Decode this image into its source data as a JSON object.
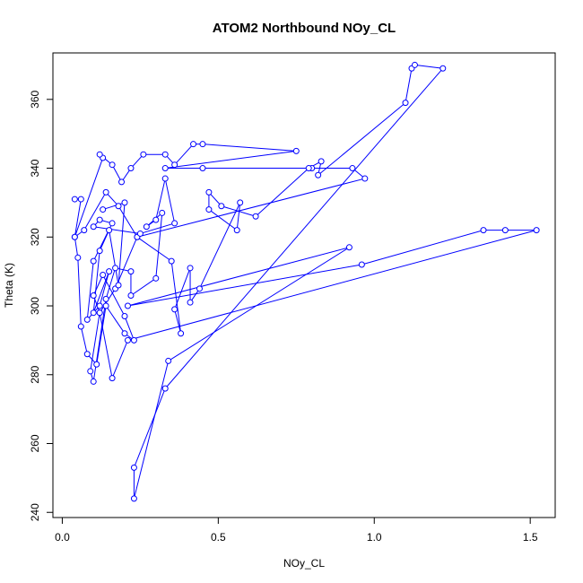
{
  "chart_data": {
    "type": "line",
    "title": "ATOM2 Northbound NOy_CL",
    "xlabel": "NOy_CL",
    "ylabel": "Theta (K)",
    "xlim": [
      -0.03,
      1.58
    ],
    "ylim": [
      238.5,
      373.5
    ],
    "xticks": [
      0.0,
      0.5,
      1.0,
      1.5
    ],
    "xtick_labels": [
      "0.0",
      "0.5",
      "1.0",
      "1.5"
    ],
    "yticks": [
      240,
      260,
      280,
      300,
      320,
      340,
      360
    ],
    "ytick_labels": [
      "240",
      "260",
      "280",
      "300",
      "320",
      "340",
      "360"
    ],
    "grid": false,
    "legend": "none",
    "series": [
      {
        "color": "#0000ff",
        "marker": "open-circle",
        "points": [
          [
            0.04,
            331
          ],
          [
            0.06,
            331
          ],
          [
            0.04,
            320
          ],
          [
            0.13,
            343
          ],
          [
            0.12,
            344
          ],
          [
            0.16,
            341
          ],
          [
            0.19,
            336
          ],
          [
            0.22,
            340
          ],
          [
            0.26,
            344
          ],
          [
            0.33,
            344
          ],
          [
            0.36,
            341
          ],
          [
            0.42,
            347
          ],
          [
            0.45,
            347
          ],
          [
            0.75,
            345
          ],
          [
            0.33,
            340
          ],
          [
            0.45,
            340
          ],
          [
            0.8,
            340
          ],
          [
            0.93,
            340
          ],
          [
            0.97,
            337
          ],
          [
            0.24,
            320
          ],
          [
            0.18,
            329
          ],
          [
            0.14,
            333
          ],
          [
            0.07,
            322
          ],
          [
            0.04,
            320
          ],
          [
            0.05,
            314
          ],
          [
            0.06,
            294
          ],
          [
            0.08,
            286
          ],
          [
            0.11,
            283
          ],
          [
            0.14,
            300
          ],
          [
            0.2,
            292
          ],
          [
            0.23,
            290
          ],
          [
            0.2,
            297
          ],
          [
            0.13,
            309
          ],
          [
            0.1,
            303
          ],
          [
            0.12,
            298
          ],
          [
            0.17,
            305
          ],
          [
            0.24,
            320
          ],
          [
            0.35,
            313
          ],
          [
            0.38,
            292
          ],
          [
            0.36,
            299
          ],
          [
            0.41,
            311
          ],
          [
            0.41,
            301
          ],
          [
            0.44,
            305
          ],
          [
            0.57,
            330
          ],
          [
            0.56,
            322
          ],
          [
            0.47,
            328
          ],
          [
            0.47,
            333
          ],
          [
            0.51,
            329
          ],
          [
            0.62,
            326
          ],
          [
            0.79,
            340
          ],
          [
            0.83,
            342
          ],
          [
            0.82,
            338
          ],
          [
            1.1,
            359
          ],
          [
            1.12,
            369
          ],
          [
            1.13,
            370
          ],
          [
            1.22,
            369
          ],
          [
            0.33,
            276
          ],
          [
            0.23,
            253
          ],
          [
            0.23,
            244
          ],
          [
            0.34,
            284
          ],
          [
            0.92,
            317
          ],
          [
            0.21,
            300
          ],
          [
            0.96,
            312
          ],
          [
            1.35,
            322
          ],
          [
            1.42,
            322
          ],
          [
            1.52,
            322
          ],
          [
            0.21,
            290
          ],
          [
            0.16,
            279
          ],
          [
            0.12,
            298
          ],
          [
            0.09,
            281
          ],
          [
            0.1,
            278
          ],
          [
            0.14,
            302
          ],
          [
            0.17,
            311
          ],
          [
            0.22,
            310
          ],
          [
            0.22,
            303
          ],
          [
            0.3,
            308
          ],
          [
            0.32,
            327
          ],
          [
            0.27,
            323
          ],
          [
            0.3,
            325
          ],
          [
            0.33,
            337
          ],
          [
            0.36,
            324
          ],
          [
            0.25,
            321
          ],
          [
            0.1,
            323
          ],
          [
            0.12,
            325
          ],
          [
            0.16,
            324
          ],
          [
            0.1,
            313
          ],
          [
            0.08,
            296
          ],
          [
            0.12,
            300
          ],
          [
            0.15,
            310
          ],
          [
            0.1,
            298
          ],
          [
            0.12,
            316
          ],
          [
            0.15,
            322
          ],
          [
            0.18,
            306
          ],
          [
            0.2,
            330
          ],
          [
            0.13,
            328
          ]
        ]
      }
    ]
  }
}
